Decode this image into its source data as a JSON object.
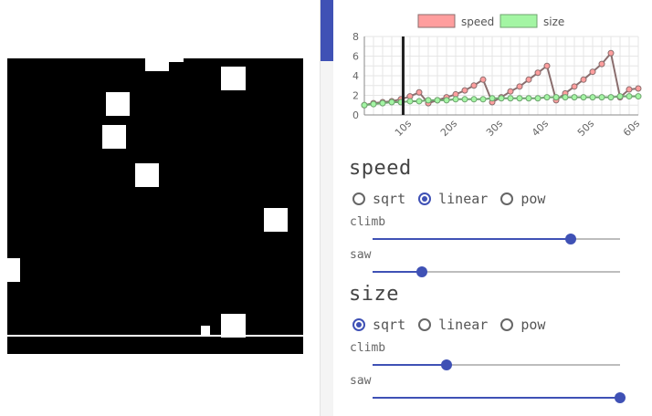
{
  "game": {
    "background": "#000000",
    "line_color": "#ffffff"
  },
  "chart_data": {
    "type": "line",
    "legend": {
      "placement": "top-center"
    },
    "ylim": [
      0,
      8
    ],
    "yticks": [
      "0",
      "2",
      "4",
      "6",
      "8"
    ],
    "xlim": [
      0,
      60
    ],
    "xticks": [
      "10s",
      "20s",
      "30s",
      "40s",
      "50s",
      "60s"
    ],
    "xtick_values": [
      10,
      20,
      30,
      40,
      50,
      60
    ],
    "grid": true,
    "marker_x": 8.5,
    "x": [
      0,
      2,
      4,
      6,
      8,
      10,
      12,
      14,
      16,
      18,
      20,
      22,
      24,
      26,
      28,
      30,
      32,
      34,
      36,
      38,
      40,
      42,
      44,
      46,
      48,
      50,
      52,
      54,
      56,
      58,
      60
    ],
    "series": [
      {
        "name": "speed",
        "color": "#ff9e9e",
        "stroke": "#8a6e6e",
        "values": [
          1.0,
          1.2,
          1.3,
          1.4,
          1.6,
          1.9,
          2.3,
          1.2,
          1.5,
          1.8,
          2.1,
          2.5,
          3.0,
          3.6,
          1.3,
          1.8,
          2.4,
          2.9,
          3.6,
          4.3,
          5.0,
          1.5,
          2.2,
          2.9,
          3.6,
          4.4,
          5.2,
          6.3,
          1.8,
          2.6,
          2.7
        ]
      },
      {
        "name": "size",
        "color": "#a3f5a3",
        "stroke": "#6fa36f",
        "values": [
          1.0,
          1.1,
          1.2,
          1.3,
          1.3,
          1.4,
          1.4,
          1.5,
          1.5,
          1.5,
          1.6,
          1.6,
          1.6,
          1.6,
          1.7,
          1.7,
          1.7,
          1.7,
          1.7,
          1.7,
          1.8,
          1.8,
          1.8,
          1.8,
          1.8,
          1.8,
          1.8,
          1.8,
          1.9,
          1.9,
          1.9
        ]
      }
    ]
  },
  "sections": [
    {
      "title": "speed",
      "options": [
        "sqrt",
        "linear",
        "pow"
      ],
      "selected": 1,
      "sliders": [
        {
          "label": "climb",
          "value": 0.8
        },
        {
          "label": "saw",
          "value": 0.2
        }
      ]
    },
    {
      "title": "size",
      "options": [
        "sqrt",
        "linear",
        "pow"
      ],
      "selected": 0,
      "sliders": [
        {
          "label": "climb",
          "value": 0.3
        },
        {
          "label": "saw",
          "value": 1.0
        }
      ]
    }
  ],
  "colors": {
    "accent": "#3f51b5"
  }
}
